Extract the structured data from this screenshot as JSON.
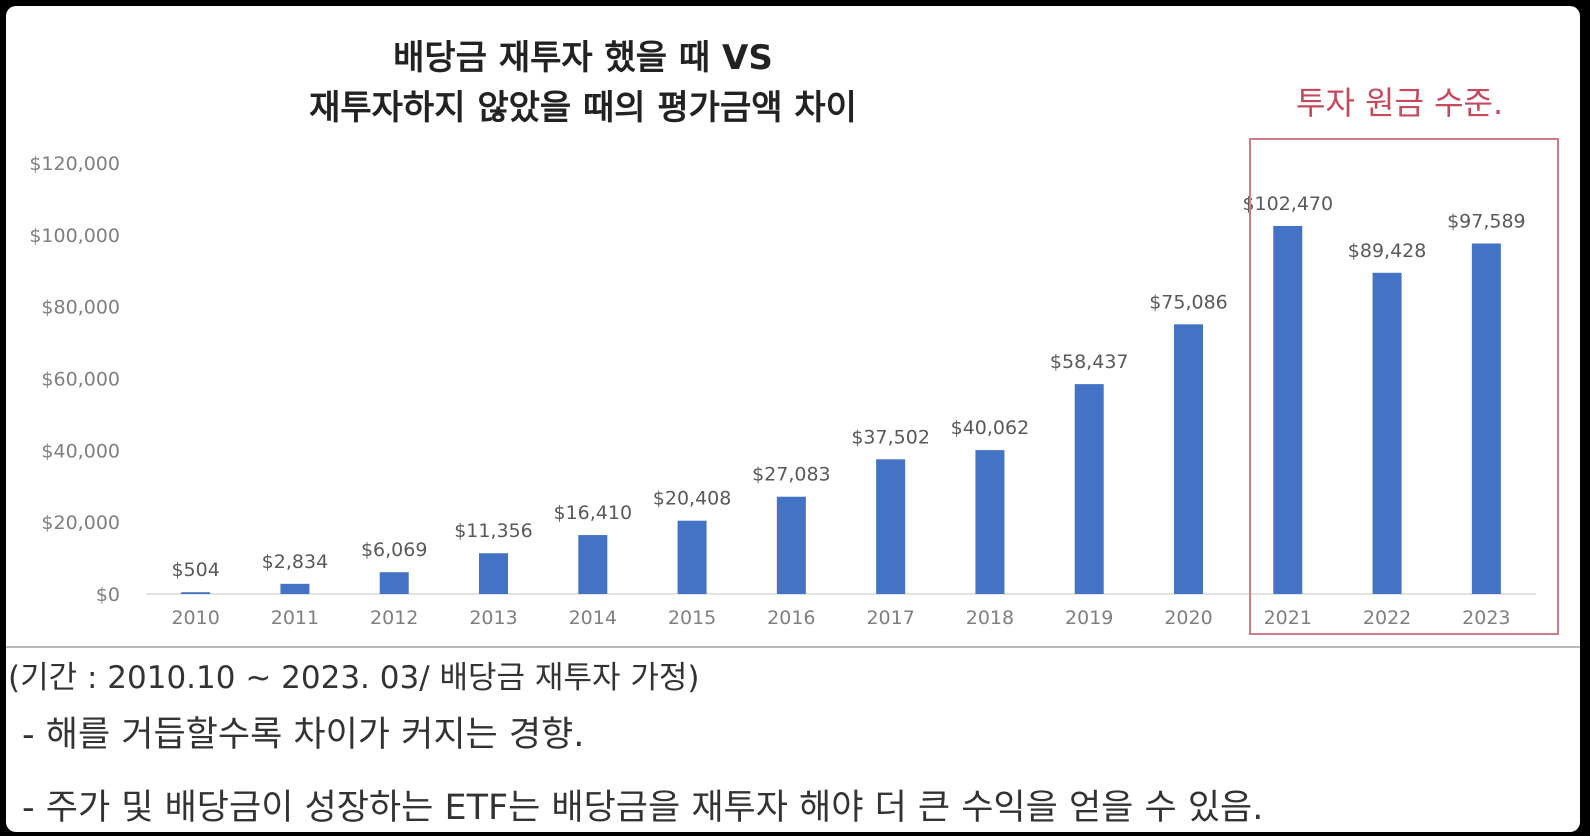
{
  "chart_data": {
    "type": "bar",
    "title_line1": "배당금 재투자 했을 때 VS",
    "title_line2": "재투자하지 않았을 때의 평가금액 차이",
    "categories": [
      "2010",
      "2011",
      "2012",
      "2013",
      "2014",
      "2015",
      "2016",
      "2017",
      "2018",
      "2019",
      "2020",
      "2021",
      "2022",
      "2023"
    ],
    "values": [
      504,
      2834,
      6069,
      11356,
      16410,
      20408,
      27083,
      37502,
      40062,
      58437,
      75086,
      102470,
      89428,
      97589
    ],
    "data_labels": [
      "$504",
      "$2,834",
      "$6,069",
      "$11,356",
      "$16,410",
      "$20,408",
      "$27,083",
      "$37,502",
      "$40,062",
      "$58,437",
      "$75,086",
      "$102,470",
      "$89,428",
      "$97,589"
    ],
    "y_ticks": [
      "$0",
      "$20,000",
      "$40,000",
      "$60,000",
      "$80,000",
      "$100,000",
      "$120,000"
    ],
    "ylim": [
      0,
      120000
    ],
    "bar_color": "#4472c4",
    "grid": false,
    "highlight": {
      "label": "투자 원금 수준.",
      "categories": [
        "2021",
        "2022",
        "2023"
      ],
      "color": "#c44a5c"
    }
  },
  "notes": {
    "period": "(기간 : 2010.10 ~ 2023. 03/ 배당금 재투자 가정)",
    "trend": "- 해를 거듭할수록 차이가 커지는 경향.",
    "growth": "- 주가 및 배당금이 성장하는 ETF는 배당금을 재투자 해야 더 큰 수익을 얻을 수 있음."
  }
}
